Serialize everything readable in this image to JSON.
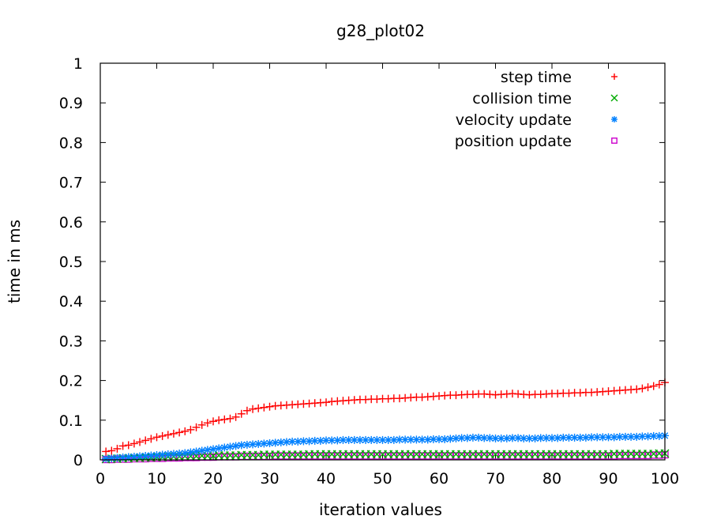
{
  "chart_data": {
    "type": "scatter",
    "title": "g28_plot02",
    "xlabel": "iteration values",
    "ylabel": "time in ms",
    "xlim": [
      0,
      100
    ],
    "ylim": [
      0,
      1
    ],
    "xticks": [
      "0",
      "10",
      "20",
      "30",
      "40",
      "50",
      "60",
      "70",
      "80",
      "90",
      "100"
    ],
    "yticks": [
      "0",
      "0.1",
      "0.2",
      "0.3",
      "0.4",
      "0.5",
      "0.6",
      "0.7",
      "0.8",
      "0.9",
      "1"
    ],
    "grid": false,
    "legend_position": "top-right",
    "series": [
      {
        "name": "step time",
        "marker": "plus",
        "color": "#ff0000",
        "x": [
          1,
          2,
          3,
          4,
          5,
          6,
          7,
          8,
          9,
          10,
          11,
          12,
          13,
          14,
          15,
          16,
          17,
          18,
          19,
          20,
          21,
          22,
          23,
          24,
          25,
          26,
          27,
          28,
          29,
          30,
          31,
          32,
          33,
          34,
          35,
          36,
          37,
          38,
          39,
          40,
          41,
          42,
          43,
          44,
          45,
          46,
          47,
          48,
          49,
          50,
          51,
          52,
          53,
          54,
          55,
          56,
          57,
          58,
          59,
          60,
          61,
          62,
          63,
          64,
          65,
          66,
          67,
          68,
          69,
          70,
          71,
          72,
          73,
          74,
          75,
          76,
          77,
          78,
          79,
          80,
          81,
          82,
          83,
          84,
          85,
          86,
          87,
          88,
          89,
          90,
          91,
          92,
          93,
          94,
          95,
          96,
          97,
          98,
          99,
          100
        ],
        "y": [
          0.021,
          0.023,
          0.028,
          0.035,
          0.037,
          0.041,
          0.045,
          0.049,
          0.053,
          0.057,
          0.06,
          0.063,
          0.066,
          0.069,
          0.072,
          0.076,
          0.082,
          0.088,
          0.093,
          0.097,
          0.1,
          0.102,
          0.104,
          0.108,
          0.116,
          0.124,
          0.128,
          0.13,
          0.132,
          0.134,
          0.136,
          0.137,
          0.138,
          0.139,
          0.14,
          0.141,
          0.142,
          0.143,
          0.144,
          0.145,
          0.147,
          0.148,
          0.149,
          0.15,
          0.151,
          0.152,
          0.152,
          0.153,
          0.153,
          0.154,
          0.154,
          0.155,
          0.155,
          0.156,
          0.157,
          0.158,
          0.158,
          0.159,
          0.16,
          0.161,
          0.162,
          0.163,
          0.163,
          0.164,
          0.165,
          0.165,
          0.166,
          0.166,
          0.165,
          0.164,
          0.165,
          0.166,
          0.167,
          0.166,
          0.165,
          0.164,
          0.165,
          0.165,
          0.166,
          0.167,
          0.167,
          0.168,
          0.168,
          0.169,
          0.169,
          0.17,
          0.17,
          0.171,
          0.172,
          0.173,
          0.174,
          0.175,
          0.176,
          0.177,
          0.178,
          0.18,
          0.183,
          0.186,
          0.19,
          0.195
        ]
      },
      {
        "name": "collision time",
        "marker": "cross",
        "color": "#00aa00",
        "x": [
          1,
          2,
          3,
          4,
          5,
          6,
          7,
          8,
          9,
          10,
          11,
          12,
          13,
          14,
          15,
          16,
          17,
          18,
          19,
          20,
          21,
          22,
          23,
          24,
          25,
          26,
          27,
          28,
          29,
          30,
          31,
          32,
          33,
          34,
          35,
          36,
          37,
          38,
          39,
          40,
          41,
          42,
          43,
          44,
          45,
          46,
          47,
          48,
          49,
          50,
          51,
          52,
          53,
          54,
          55,
          56,
          57,
          58,
          59,
          60,
          61,
          62,
          63,
          64,
          65,
          66,
          67,
          68,
          69,
          70,
          71,
          72,
          73,
          74,
          75,
          76,
          77,
          78,
          79,
          80,
          81,
          82,
          83,
          84,
          85,
          86,
          87,
          88,
          89,
          90,
          91,
          92,
          93,
          94,
          95,
          96,
          97,
          98,
          99,
          100
        ],
        "y": [
          0.002,
          0.003,
          0.003,
          0.004,
          0.004,
          0.005,
          0.005,
          0.006,
          0.006,
          0.007,
          0.007,
          0.008,
          0.008,
          0.008,
          0.009,
          0.009,
          0.009,
          0.01,
          0.01,
          0.01,
          0.011,
          0.011,
          0.011,
          0.011,
          0.012,
          0.012,
          0.012,
          0.012,
          0.013,
          0.013,
          0.013,
          0.013,
          0.013,
          0.013,
          0.013,
          0.013,
          0.014,
          0.014,
          0.014,
          0.014,
          0.014,
          0.014,
          0.014,
          0.014,
          0.014,
          0.014,
          0.014,
          0.014,
          0.014,
          0.014,
          0.014,
          0.014,
          0.014,
          0.014,
          0.014,
          0.014,
          0.014,
          0.014,
          0.014,
          0.014,
          0.014,
          0.014,
          0.014,
          0.014,
          0.014,
          0.014,
          0.014,
          0.014,
          0.014,
          0.014,
          0.014,
          0.014,
          0.014,
          0.014,
          0.014,
          0.014,
          0.014,
          0.014,
          0.014,
          0.014,
          0.014,
          0.014,
          0.014,
          0.014,
          0.014,
          0.014,
          0.014,
          0.014,
          0.014,
          0.014,
          0.015,
          0.015,
          0.015,
          0.015,
          0.015,
          0.015,
          0.015,
          0.015,
          0.016,
          0.016
        ]
      },
      {
        "name": "velocity update",
        "marker": "star",
        "color": "#0080ff",
        "x": [
          1,
          2,
          3,
          4,
          5,
          6,
          7,
          8,
          9,
          10,
          11,
          12,
          13,
          14,
          15,
          16,
          17,
          18,
          19,
          20,
          21,
          22,
          23,
          24,
          25,
          26,
          27,
          28,
          29,
          30,
          31,
          32,
          33,
          34,
          35,
          36,
          37,
          38,
          39,
          40,
          41,
          42,
          43,
          44,
          45,
          46,
          47,
          48,
          49,
          50,
          51,
          52,
          53,
          54,
          55,
          56,
          57,
          58,
          59,
          60,
          61,
          62,
          63,
          64,
          65,
          66,
          67,
          68,
          69,
          70,
          71,
          72,
          73,
          74,
          75,
          76,
          77,
          78,
          79,
          80,
          81,
          82,
          83,
          84,
          85,
          86,
          87,
          88,
          89,
          90,
          91,
          92,
          93,
          94,
          95,
          96,
          97,
          98,
          99,
          100
        ],
        "y": [
          0.003,
          0.004,
          0.005,
          0.006,
          0.007,
          0.008,
          0.009,
          0.01,
          0.011,
          0.012,
          0.013,
          0.014,
          0.015,
          0.016,
          0.017,
          0.019,
          0.021,
          0.023,
          0.025,
          0.027,
          0.029,
          0.031,
          0.033,
          0.035,
          0.037,
          0.038,
          0.039,
          0.04,
          0.041,
          0.042,
          0.043,
          0.044,
          0.045,
          0.046,
          0.046,
          0.047,
          0.047,
          0.048,
          0.048,
          0.049,
          0.049,
          0.049,
          0.05,
          0.05,
          0.05,
          0.05,
          0.05,
          0.05,
          0.05,
          0.05,
          0.05,
          0.05,
          0.051,
          0.051,
          0.051,
          0.051,
          0.051,
          0.051,
          0.052,
          0.052,
          0.052,
          0.053,
          0.054,
          0.055,
          0.055,
          0.056,
          0.056,
          0.055,
          0.055,
          0.054,
          0.054,
          0.054,
          0.055,
          0.055,
          0.054,
          0.054,
          0.054,
          0.055,
          0.055,
          0.055,
          0.055,
          0.056,
          0.056,
          0.056,
          0.056,
          0.056,
          0.057,
          0.057,
          0.057,
          0.057,
          0.057,
          0.058,
          0.058,
          0.058,
          0.058,
          0.059,
          0.059,
          0.06,
          0.06,
          0.061
        ]
      },
      {
        "name": "position update",
        "marker": "square",
        "color": "#cc00cc",
        "x": [
          1,
          2,
          3,
          4,
          5,
          6,
          7,
          8,
          9,
          10,
          11,
          12,
          13,
          14,
          15,
          16,
          17,
          18,
          19,
          20,
          21,
          22,
          23,
          24,
          25,
          26,
          27,
          28,
          29,
          30,
          31,
          32,
          33,
          34,
          35,
          36,
          37,
          38,
          39,
          40,
          41,
          42,
          43,
          44,
          45,
          46,
          47,
          48,
          49,
          50,
          51,
          52,
          53,
          54,
          55,
          56,
          57,
          58,
          59,
          60,
          61,
          62,
          63,
          64,
          65,
          66,
          67,
          68,
          69,
          70,
          71,
          72,
          73,
          74,
          75,
          76,
          77,
          78,
          79,
          80,
          81,
          82,
          83,
          84,
          85,
          86,
          87,
          88,
          89,
          90,
          91,
          92,
          93,
          94,
          95,
          96,
          97,
          98,
          99,
          100
        ],
        "y": [
          0.001,
          0.001,
          0.002,
          0.002,
          0.002,
          0.003,
          0.003,
          0.003,
          0.004,
          0.004,
          0.004,
          0.005,
          0.005,
          0.005,
          0.006,
          0.006,
          0.006,
          0.007,
          0.007,
          0.007,
          0.008,
          0.008,
          0.008,
          0.008,
          0.009,
          0.009,
          0.009,
          0.009,
          0.009,
          0.009,
          0.01,
          0.01,
          0.01,
          0.01,
          0.01,
          0.01,
          0.01,
          0.01,
          0.01,
          0.01,
          0.01,
          0.01,
          0.01,
          0.01,
          0.01,
          0.01,
          0.01,
          0.01,
          0.01,
          0.01,
          0.01,
          0.01,
          0.01,
          0.01,
          0.01,
          0.01,
          0.01,
          0.01,
          0.01,
          0.01,
          0.01,
          0.01,
          0.01,
          0.01,
          0.01,
          0.01,
          0.01,
          0.01,
          0.01,
          0.01,
          0.01,
          0.01,
          0.01,
          0.01,
          0.01,
          0.01,
          0.01,
          0.01,
          0.01,
          0.01,
          0.01,
          0.01,
          0.01,
          0.01,
          0.01,
          0.01,
          0.01,
          0.01,
          0.01,
          0.01,
          0.01,
          0.011,
          0.011,
          0.011,
          0.011,
          0.011,
          0.011,
          0.012,
          0.012,
          0.013
        ]
      }
    ]
  }
}
